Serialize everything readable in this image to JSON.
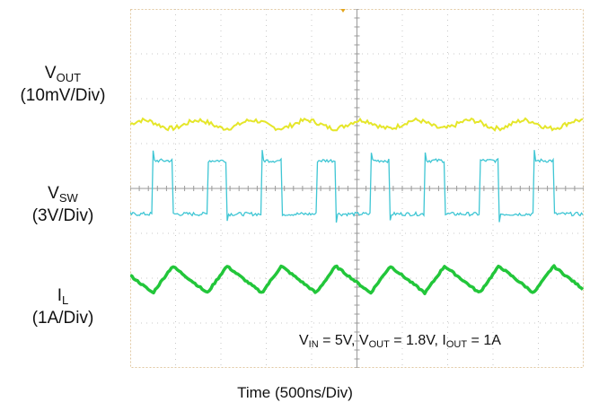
{
  "chart_data": {
    "type": "line",
    "title": "",
    "xlabel": "Time  (500ns/Div)",
    "divisions": {
      "x": 10,
      "y": 8
    },
    "series": [
      {
        "label_main": "V",
        "label_sub": "OUT",
        "scale": "(10mV/Div)",
        "color": "#e5e62a",
        "waveform": "ripple",
        "level_div": 5.43,
        "ripple_div": 0.18,
        "period_div": 1.2
      },
      {
        "label_main": "V",
        "label_sub": "SW",
        "scale": "(3V/Div)",
        "color": "#3fc6d4",
        "waveform": "square",
        "high_div": 4.62,
        "low_div": 3.43,
        "period_div": 1.2,
        "duty": 0.36,
        "first_rise_div": 0.5
      },
      {
        "label_main": "I",
        "label_sub": "L",
        "scale": "(1A/Div)",
        "color": "#22c63a",
        "waveform": "triangle",
        "peak_div": 2.27,
        "valley_div": 1.67,
        "period_div": 1.2,
        "duty": 0.36
      }
    ],
    "conditions": [
      {
        "main": "V",
        "sub": "IN",
        "rest": " = 5V, "
      },
      {
        "main": "V",
        "sub": "OUT",
        "rest": " = 1.8V, "
      },
      {
        "main": "I",
        "sub": "OUT",
        "rest": " = 1A"
      }
    ]
  }
}
